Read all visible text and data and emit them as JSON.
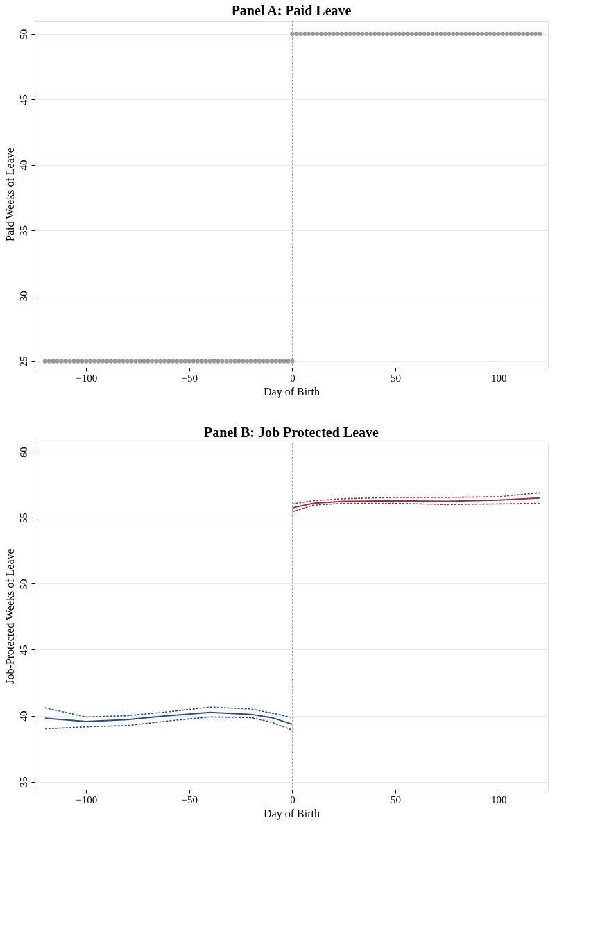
{
  "chart_data": [
    {
      "type": "scatter",
      "title": "Panel A: Paid Leave",
      "xlabel": "Day of Birth",
      "ylabel": "Paid Weeks of Leave",
      "xlim": [
        -125,
        124
      ],
      "xticks": [
        -100,
        -50,
        0,
        50,
        100
      ],
      "ylim": [
        24.5,
        51
      ],
      "yticks": [
        25,
        30,
        35,
        40,
        45,
        50
      ],
      "grid": "y",
      "marker": "circle",
      "ref_lines": [
        {
          "axis": "x",
          "value": 0,
          "color": "#aaaaaa",
          "line_style": "dashed"
        }
      ],
      "series": [
        {
          "color": "#999999",
          "x": [
            -120,
            -118,
            -116,
            -114,
            -112,
            -110,
            -108,
            -106,
            -104,
            -102,
            -100,
            -98,
            -96,
            -94,
            -92,
            -90,
            -88,
            -86,
            -84,
            -82,
            -80,
            -78,
            -76,
            -74,
            -72,
            -70,
            -68,
            -66,
            -64,
            -62,
            -60,
            -58,
            -56,
            -54,
            -52,
            -50,
            -48,
            -46,
            -44,
            -42,
            -40,
            -38,
            -36,
            -34,
            -32,
            -30,
            -28,
            -26,
            -24,
            -22,
            -20,
            -18,
            -16,
            -14,
            -12,
            -10,
            -8,
            -6,
            -4,
            -2,
            0
          ],
          "values": [
            25,
            25,
            25,
            25,
            25,
            25,
            25,
            25,
            25,
            25,
            25,
            25,
            25,
            25,
            25,
            25,
            25,
            25,
            25,
            25,
            25,
            25,
            25,
            25,
            25,
            25,
            25,
            25,
            25,
            25,
            25,
            25,
            25,
            25,
            25,
            25,
            25,
            25,
            25,
            25,
            25,
            25,
            25,
            25,
            25,
            25,
            25,
            25,
            25,
            25,
            25,
            25,
            25,
            25,
            25,
            25,
            25,
            25,
            25,
            25,
            25
          ]
        },
        {
          "color": "#999999",
          "x": [
            0,
            2,
            4,
            6,
            8,
            10,
            12,
            14,
            16,
            18,
            20,
            22,
            24,
            26,
            28,
            30,
            32,
            34,
            36,
            38,
            40,
            42,
            44,
            46,
            48,
            50,
            52,
            54,
            56,
            58,
            60,
            62,
            64,
            66,
            68,
            70,
            72,
            74,
            76,
            78,
            80,
            82,
            84,
            86,
            88,
            90,
            92,
            94,
            96,
            98,
            100,
            102,
            104,
            106,
            108,
            110,
            112,
            114,
            116,
            118,
            120
          ],
          "values": [
            50,
            50,
            50,
            50,
            50,
            50,
            50,
            50,
            50,
            50,
            50,
            50,
            50,
            50,
            50,
            50,
            50,
            50,
            50,
            50,
            50,
            50,
            50,
            50,
            50,
            50,
            50,
            50,
            50,
            50,
            50,
            50,
            50,
            50,
            50,
            50,
            50,
            50,
            50,
            50,
            50,
            50,
            50,
            50,
            50,
            50,
            50,
            50,
            50,
            50,
            50,
            50,
            50,
            50,
            50,
            50,
            50,
            50,
            50,
            50,
            50
          ]
        }
      ]
    },
    {
      "type": "line",
      "title": "Panel B: Job Protected Leave",
      "xlabel": "Day of Birth",
      "ylabel": "Job-Protected Weeks of Leave",
      "xlim": [
        -125,
        124
      ],
      "xticks": [
        -100,
        -50,
        0,
        50,
        100
      ],
      "ylim": [
        34.4,
        60.7
      ],
      "yticks": [
        35,
        40,
        45,
        50,
        55,
        60
      ],
      "grid": "y",
      "marker": "none",
      "line_style": "solid",
      "ref_lines": [
        {
          "axis": "x",
          "value": 0,
          "color": "#aaaaaa",
          "line_style": "dashed"
        }
      ],
      "series": [
        {
          "color": "#2b4c7e",
          "x": [
            -120,
            -100,
            -80,
            -60,
            -40,
            -20,
            -10,
            0
          ],
          "values": [
            39.8,
            39.55,
            39.7,
            40.0,
            40.25,
            40.1,
            39.85,
            39.35
          ]
        },
        {
          "color": "#2b4c7e",
          "line_style": "dashed",
          "x": [
            -120,
            -100,
            -80,
            -60,
            -40,
            -20,
            -10,
            0
          ],
          "values": [
            39.0,
            39.15,
            39.25,
            39.6,
            39.9,
            39.85,
            39.5,
            38.9
          ]
        },
        {
          "color": "#2b4c7e",
          "line_style": "dashed",
          "x": [
            -120,
            -100,
            -80,
            -60,
            -40,
            -20,
            -10,
            0
          ],
          "values": [
            40.6,
            39.9,
            40.0,
            40.3,
            40.65,
            40.5,
            40.2,
            39.85
          ]
        },
        {
          "color": "#943340",
          "x": [
            0,
            10,
            25,
            50,
            75,
            100,
            120
          ],
          "values": [
            55.75,
            56.1,
            56.25,
            56.3,
            56.25,
            56.35,
            56.5
          ]
        },
        {
          "color": "#943340",
          "line_style": "dashed",
          "x": [
            0,
            10,
            25,
            50,
            75,
            100,
            120
          ],
          "values": [
            55.45,
            55.95,
            56.1,
            56.1,
            56.0,
            56.05,
            56.1
          ]
        },
        {
          "color": "#943340",
          "line_style": "dashed",
          "x": [
            0,
            10,
            25,
            50,
            75,
            100,
            120
          ],
          "values": [
            56.05,
            56.3,
            56.45,
            56.55,
            56.55,
            56.6,
            56.9
          ]
        }
      ]
    }
  ]
}
